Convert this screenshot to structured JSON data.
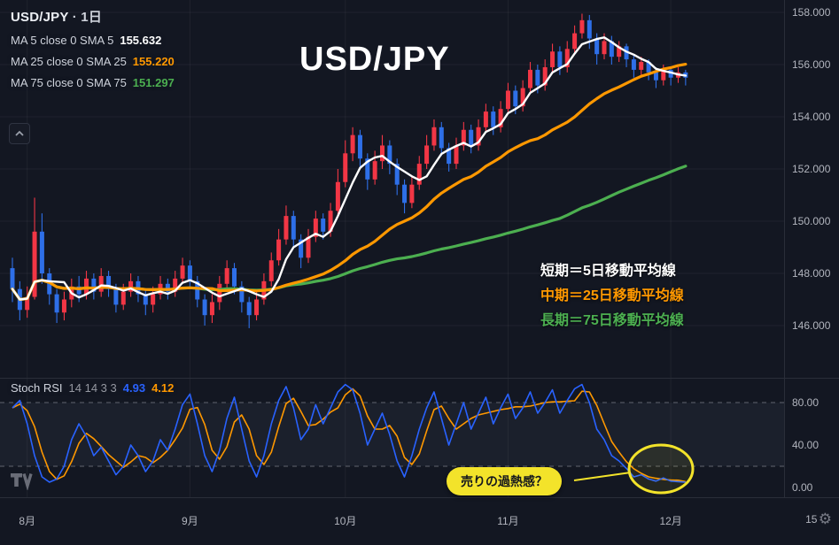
{
  "header": {
    "symbol": "USD/JPY",
    "separator": "·",
    "interval": "1日",
    "watermark": "USD/JPY"
  },
  "legend": {
    "rows": [
      {
        "label": "MA 5 close 0 SMA 5",
        "value": "155.632",
        "color": "#ffffff"
      },
      {
        "label": "MA 25 close 0 SMA 25",
        "value": "155.220",
        "color": "#ff9800"
      },
      {
        "label": "MA 75 close 0 SMA 75",
        "value": "151.297",
        "color": "#4caf50"
      }
    ]
  },
  "stoch_legend": {
    "title": "Stoch RSI",
    "params": "14 14 3 3",
    "k_value": "4.93",
    "d_value": "4.12"
  },
  "annotations": {
    "short_ma_note": "短期＝5日移動平均線",
    "mid_ma_note": "中期＝25日移動平均線",
    "long_ma_note": "長期＝75日移動平均線",
    "callout": "売りの過熱感？"
  },
  "icons": {
    "gear": "⚙"
  },
  "axes": {
    "price_labels": [
      "158.000",
      "156.000",
      "154.000",
      "152.000",
      "150.000",
      "148.000",
      "146.000"
    ],
    "stoch_labels": [
      {
        "text": "80.00",
        "value": 80
      },
      {
        "text": "40.00",
        "value": 40
      },
      {
        "text": "0.00",
        "value": 0
      }
    ]
  },
  "chart_data": {
    "type": "candlestick",
    "title": "USD/JPY 1日 (daily) with SMA 5/25/75 and Stoch RSI (14,14,3,3)",
    "price_axis_range": [
      144.0,
      158.5
    ],
    "grid_prices": [
      158,
      156,
      154,
      152,
      150,
      148,
      146
    ],
    "up_color": "#f23645",
    "down_color": "#2e6fe8",
    "candles": [
      [
        148.2,
        148.6,
        146.9,
        147.4
      ],
      [
        147.4,
        147.7,
        146.2,
        146.6
      ],
      [
        146.6,
        147.5,
        146.3,
        147.1
      ],
      [
        147.1,
        150.9,
        147.0,
        149.6
      ],
      [
        149.6,
        150.3,
        147.6,
        148.0
      ],
      [
        148.0,
        148.2,
        146.8,
        147.2
      ],
      [
        147.2,
        147.4,
        146.1,
        146.5
      ],
      [
        146.5,
        147.3,
        146.2,
        147.0
      ],
      [
        147.0,
        147.8,
        146.7,
        147.5
      ],
      [
        147.5,
        147.9,
        146.9,
        147.2
      ],
      [
        147.2,
        148.1,
        147.0,
        147.8
      ],
      [
        147.8,
        148.0,
        147.0,
        147.3
      ],
      [
        147.3,
        148.2,
        147.1,
        147.9
      ],
      [
        147.9,
        148.1,
        147.1,
        147.4
      ],
      [
        147.4,
        147.6,
        146.5,
        146.8
      ],
      [
        146.8,
        147.6,
        146.6,
        147.3
      ],
      [
        147.3,
        148.0,
        147.1,
        147.7
      ],
      [
        147.7,
        147.9,
        146.9,
        147.2
      ],
      [
        147.2,
        147.4,
        146.4,
        146.8
      ],
      [
        146.8,
        147.5,
        146.5,
        147.2
      ],
      [
        147.2,
        147.9,
        147.0,
        147.6
      ],
      [
        147.6,
        147.8,
        147.0,
        147.3
      ],
      [
        147.3,
        148.1,
        147.1,
        147.8
      ],
      [
        147.8,
        148.6,
        147.6,
        148.3
      ],
      [
        148.3,
        148.5,
        147.4,
        147.7
      ],
      [
        147.7,
        147.9,
        146.7,
        147.0
      ],
      [
        147.0,
        147.2,
        146.0,
        146.4
      ],
      [
        146.4,
        147.2,
        146.1,
        146.9
      ],
      [
        146.9,
        147.9,
        146.6,
        147.6
      ],
      [
        147.6,
        148.5,
        147.3,
        148.2
      ],
      [
        148.2,
        148.4,
        147.2,
        147.5
      ],
      [
        147.5,
        147.7,
        146.5,
        146.9
      ],
      [
        146.9,
        147.1,
        145.9,
        146.4
      ],
      [
        146.4,
        147.3,
        146.2,
        147.0
      ],
      [
        147.0,
        148.0,
        146.8,
        147.7
      ],
      [
        147.7,
        148.8,
        147.5,
        148.5
      ],
      [
        148.5,
        149.7,
        148.3,
        149.3
      ],
      [
        149.3,
        150.6,
        149.1,
        150.2
      ],
      [
        150.2,
        150.4,
        149.0,
        149.3
      ],
      [
        149.3,
        149.5,
        148.2,
        148.6
      ],
      [
        148.6,
        149.7,
        148.4,
        149.4
      ],
      [
        149.4,
        150.4,
        149.2,
        150.1
      ],
      [
        150.1,
        150.3,
        149.3,
        149.6
      ],
      [
        149.6,
        150.7,
        149.4,
        150.4
      ],
      [
        150.4,
        152.0,
        150.2,
        151.5
      ],
      [
        151.5,
        153.1,
        151.3,
        152.6
      ],
      [
        152.6,
        153.6,
        152.3,
        153.3
      ],
      [
        153.3,
        153.5,
        152.0,
        152.4
      ],
      [
        152.4,
        152.6,
        151.2,
        151.6
      ],
      [
        151.6,
        152.7,
        151.4,
        152.3
      ],
      [
        152.3,
        153.3,
        152.0,
        152.9
      ],
      [
        152.9,
        153.1,
        151.8,
        152.2
      ],
      [
        152.2,
        152.4,
        151.0,
        151.4
      ],
      [
        151.4,
        151.6,
        150.3,
        150.7
      ],
      [
        150.7,
        151.7,
        150.5,
        151.4
      ],
      [
        151.4,
        152.5,
        151.2,
        152.2
      ],
      [
        152.2,
        153.3,
        152.0,
        152.9
      ],
      [
        152.9,
        153.9,
        152.7,
        153.6
      ],
      [
        153.6,
        153.8,
        152.5,
        152.8
      ],
      [
        152.8,
        153.0,
        151.9,
        152.2
      ],
      [
        152.2,
        153.2,
        152.0,
        152.9
      ],
      [
        152.9,
        153.8,
        152.7,
        153.5
      ],
      [
        153.5,
        153.7,
        152.6,
        152.9
      ],
      [
        152.9,
        153.9,
        152.7,
        153.6
      ],
      [
        153.6,
        154.5,
        153.4,
        154.2
      ],
      [
        154.2,
        154.4,
        153.3,
        153.6
      ],
      [
        153.6,
        154.6,
        153.4,
        154.3
      ],
      [
        154.3,
        155.3,
        154.1,
        155.0
      ],
      [
        155.0,
        155.2,
        154.1,
        154.4
      ],
      [
        154.4,
        155.4,
        154.2,
        155.1
      ],
      [
        155.1,
        156.1,
        154.9,
        155.8
      ],
      [
        155.8,
        156.0,
        154.9,
        155.2
      ],
      [
        155.2,
        156.2,
        155.0,
        155.9
      ],
      [
        155.9,
        156.8,
        155.7,
        156.5
      ],
      [
        156.5,
        156.7,
        155.6,
        155.9
      ],
      [
        155.9,
        156.9,
        155.7,
        156.6
      ],
      [
        156.6,
        157.5,
        156.4,
        157.2
      ],
      [
        157.2,
        157.95,
        157.0,
        157.7
      ],
      [
        157.7,
        157.9,
        156.6,
        157.0
      ],
      [
        157.0,
        157.2,
        156.0,
        156.4
      ],
      [
        156.4,
        157.2,
        156.2,
        156.9
      ],
      [
        156.9,
        157.1,
        156.0,
        156.3
      ],
      [
        156.3,
        156.9,
        156.1,
        156.7
      ],
      [
        156.7,
        156.8,
        155.9,
        156.2
      ],
      [
        156.2,
        156.4,
        155.5,
        155.8
      ],
      [
        155.8,
        156.3,
        155.6,
        156.1
      ],
      [
        156.1,
        156.2,
        155.4,
        155.7
      ],
      [
        155.7,
        155.9,
        155.1,
        155.4
      ],
      [
        155.4,
        156.0,
        155.2,
        155.8
      ],
      [
        155.8,
        155.9,
        155.2,
        155.5
      ],
      [
        155.5,
        155.9,
        155.3,
        155.7
      ],
      [
        155.7,
        155.8,
        155.2,
        155.5
      ]
    ],
    "moving_averages": [
      {
        "name": "SMA 5",
        "window": 5,
        "color": "#ffffff",
        "width": 2.4,
        "last_value": 155.632
      },
      {
        "name": "SMA 25",
        "window": 25,
        "color": "#ff9800",
        "width": 3.2,
        "last_value": 155.22
      },
      {
        "name": "SMA 75",
        "window": 75,
        "color": "#4caf50",
        "width": 3.2,
        "last_value": 151.297
      }
    ],
    "time_marks": [
      {
        "label": "8月",
        "index": 2
      },
      {
        "label": "9月",
        "index": 24
      },
      {
        "label": "10月",
        "index": 45
      },
      {
        "label": "11月",
        "index": 67
      },
      {
        "label": "12月",
        "index": 89
      },
      {
        "label": "15",
        "index": 108
      }
    ],
    "stoch_rsi": {
      "params": [
        14,
        14,
        3,
        3
      ],
      "k_color": "#2962ff",
      "d_color": "#ff9800",
      "k_last": 4.93,
      "d_last": 4.12,
      "upper_band": 80,
      "lower_band": 20,
      "range": [
        0,
        100
      ],
      "k": [
        75,
        82,
        60,
        30,
        10,
        5,
        8,
        20,
        45,
        60,
        48,
        30,
        38,
        25,
        12,
        20,
        40,
        30,
        15,
        25,
        45,
        35,
        55,
        78,
        88,
        60,
        30,
        15,
        35,
        65,
        85,
        55,
        25,
        10,
        30,
        60,
        82,
        95,
        75,
        45,
        55,
        78,
        60,
        75,
        90,
        97,
        92,
        70,
        40,
        55,
        70,
        50,
        25,
        10,
        30,
        55,
        75,
        90,
        65,
        40,
        60,
        80,
        55,
        70,
        85,
        60,
        75,
        88,
        65,
        75,
        90,
        70,
        80,
        92,
        70,
        82,
        93,
        97,
        80,
        55,
        45,
        30,
        25,
        18,
        10,
        12,
        8,
        6,
        9,
        6,
        5.5,
        4.93
      ]
    }
  }
}
